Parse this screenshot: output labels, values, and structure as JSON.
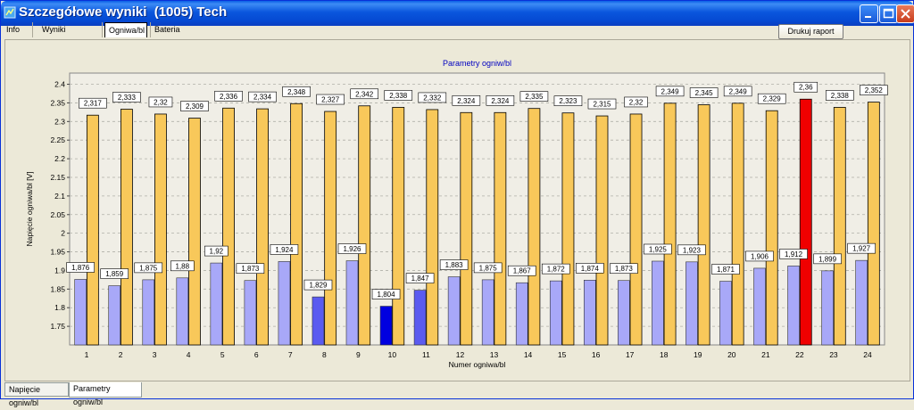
{
  "window": {
    "title": "Szczegółowe wyniki  (1005) Tech",
    "icon": "app-tdr-icon"
  },
  "top_tabs": [
    "Info",
    "Wyniki pomiarów",
    "Ogniwa/bl",
    "Bateria"
  ],
  "active_top_tab": "Ogniwa/bl",
  "print_button": "Drukuj raport",
  "bottom_tabs": [
    "Napięcie ogniw/bl",
    "Parametry ogniw/bl"
  ],
  "active_bottom_tab": "Parametry ogniw/bl",
  "colors": {
    "low_bar": "#a8a8f8",
    "mid_bar": "#5b5bf0",
    "min_bar": "#0000e0",
    "high_bar": "#f8c85a",
    "max_bar": "#f00000",
    "chart_bg": "#f0eee6"
  },
  "chart_data": {
    "type": "bar",
    "title": "Parametry ogniw/bl",
    "xlabel": "Numer ogniwa/bl",
    "ylabel": "Napięcie ogniwa/bl [V]",
    "ylim": [
      1.7,
      2.43
    ],
    "yticks": [
      "1.75",
      "1.8",
      "1.85",
      "1.9",
      "1.95",
      "2",
      "2.05",
      "2.1",
      "2.15",
      "2.2",
      "2.25",
      "2.3",
      "2.35",
      "2.4"
    ],
    "categories": [
      "1",
      "2",
      "3",
      "4",
      "5",
      "6",
      "7",
      "8",
      "9",
      "10",
      "11",
      "12",
      "13",
      "14",
      "15",
      "16",
      "17",
      "18",
      "19",
      "20",
      "21",
      "22",
      "23",
      "24"
    ],
    "series": [
      {
        "values": [
          1.876,
          1.859,
          1.875,
          1.88,
          1.92,
          1.873,
          1.924,
          1.829,
          1.926,
          1.804,
          1.847,
          1.883,
          1.875,
          1.867,
          1.872,
          1.874,
          1.873,
          1.925,
          1.923,
          1.871,
          1.906,
          1.912,
          1.899,
          1.927
        ],
        "labels": [
          "1,876",
          "1,859",
          "1,875",
          "1,88",
          "1,92",
          "1,873",
          "1,924",
          "1,829",
          "1,926",
          "1,804",
          "1,847",
          "1,883",
          "1,875",
          "1,867",
          "1,872",
          "1,874",
          "1,873",
          "1,925",
          "1,923",
          "1,871",
          "1,906",
          "1,912",
          "1,899",
          "1,927"
        ]
      },
      {
        "values": [
          2.317,
          2.333,
          2.32,
          2.309,
          2.336,
          2.334,
          2.348,
          2.327,
          2.342,
          2.338,
          2.332,
          2.324,
          2.324,
          2.335,
          2.323,
          2.315,
          2.32,
          2.349,
          2.345,
          2.349,
          2.329,
          2.36,
          2.338,
          2.352
        ],
        "labels": [
          "2,317",
          "2,333",
          "2,32",
          "2,309",
          "2,336",
          "2,334",
          "2,348",
          "2,327",
          "2,342",
          "2,338",
          "2,332",
          "2,324",
          "2,324",
          "2,335",
          "2,323",
          "2,315",
          "2,32",
          "2,349",
          "2,345",
          "2,349",
          "2,329",
          "2,36",
          "2,338",
          "2,352"
        ]
      }
    ],
    "grid": true,
    "highlight": {
      "min_low_index": 9,
      "mid_low_indices": [
        7,
        10
      ],
      "max_high_index": 21
    }
  }
}
